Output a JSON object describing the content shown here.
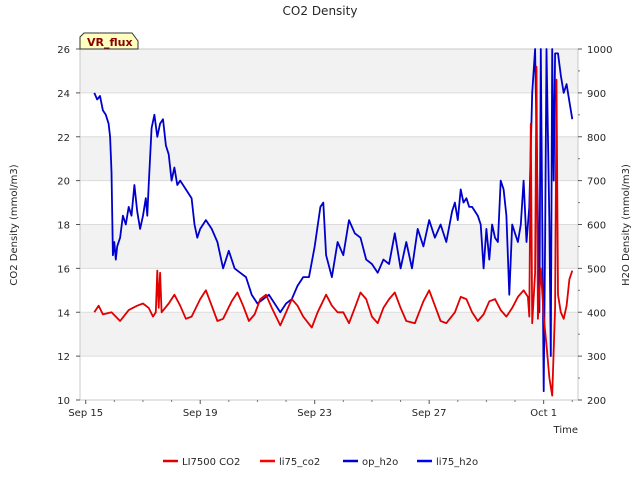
{
  "chart_data": {
    "type": "line",
    "title": "CO2 Density",
    "badge": "VR_flux",
    "xlabel": "Time",
    "ylabel_left": "CO2 Density (mmol/m3)",
    "ylabel_right": "H2O Density (mmol/m3)",
    "x_unit": "days since Sep 15",
    "xlim": [
      -0.2,
      17.2
    ],
    "ylim_left": [
      10,
      26
    ],
    "ylim_right": [
      200,
      1000
    ],
    "x_ticks": [
      {
        "value": 0,
        "label": "Sep 15"
      },
      {
        "value": 4,
        "label": "Sep 19"
      },
      {
        "value": 8,
        "label": "Sep 23"
      },
      {
        "value": 12,
        "label": "Sep 27"
      },
      {
        "value": 16,
        "label": "Oct 1"
      }
    ],
    "y_ticks_left": [
      10,
      12,
      14,
      16,
      18,
      20,
      22,
      24,
      26
    ],
    "y_ticks_right": [
      200,
      300,
      400,
      500,
      600,
      700,
      800,
      900,
      1000
    ],
    "bands": "alternating light gray horizontal bands",
    "legend": [
      {
        "name": "LI7500 CO2",
        "color": "#e00000"
      },
      {
        "name": "li75_co2",
        "color": "#ff0000"
      },
      {
        "name": "op_h2o",
        "color": "#0000cc"
      },
      {
        "name": "li75_h2o",
        "color": "#0000ff"
      }
    ],
    "series": [
      {
        "name": "LI7500 CO2",
        "axis": "left",
        "color": "#e00000",
        "points": [
          [
            0.3,
            14.0
          ],
          [
            0.45,
            14.3
          ],
          [
            0.6,
            13.9
          ],
          [
            0.9,
            14.0
          ],
          [
            1.2,
            13.6
          ],
          [
            1.5,
            14.1
          ],
          [
            1.8,
            14.3
          ],
          [
            2.0,
            14.4
          ],
          [
            2.2,
            14.2
          ],
          [
            2.35,
            13.8
          ],
          [
            2.45,
            14.0
          ],
          [
            2.5,
            15.9
          ],
          [
            2.55,
            14.2
          ],
          [
            2.6,
            15.8
          ],
          [
            2.65,
            14.0
          ],
          [
            2.9,
            14.4
          ],
          [
            3.1,
            14.8
          ],
          [
            3.3,
            14.3
          ],
          [
            3.5,
            13.7
          ],
          [
            3.7,
            13.8
          ],
          [
            4.0,
            14.6
          ],
          [
            4.2,
            15.0
          ],
          [
            4.4,
            14.3
          ],
          [
            4.6,
            13.6
          ],
          [
            4.8,
            13.7
          ],
          [
            5.1,
            14.5
          ],
          [
            5.3,
            14.9
          ],
          [
            5.5,
            14.3
          ],
          [
            5.7,
            13.6
          ],
          [
            5.9,
            13.9
          ],
          [
            6.1,
            14.6
          ],
          [
            6.3,
            14.8
          ],
          [
            6.5,
            14.2
          ],
          [
            6.8,
            13.4
          ],
          [
            7.0,
            14.0
          ],
          [
            7.2,
            14.6
          ],
          [
            7.4,
            14.3
          ],
          [
            7.6,
            13.8
          ],
          [
            7.9,
            13.3
          ],
          [
            8.1,
            14.0
          ],
          [
            8.4,
            14.8
          ],
          [
            8.6,
            14.3
          ],
          [
            8.8,
            14.0
          ],
          [
            9.0,
            14.0
          ],
          [
            9.2,
            13.5
          ],
          [
            9.4,
            14.2
          ],
          [
            9.6,
            14.9
          ],
          [
            9.8,
            14.6
          ],
          [
            10.0,
            13.8
          ],
          [
            10.2,
            13.5
          ],
          [
            10.4,
            14.2
          ],
          [
            10.6,
            14.6
          ],
          [
            10.8,
            14.9
          ],
          [
            11.0,
            14.2
          ],
          [
            11.2,
            13.6
          ],
          [
            11.5,
            13.5
          ],
          [
            11.8,
            14.5
          ],
          [
            12.0,
            15.0
          ],
          [
            12.2,
            14.3
          ],
          [
            12.4,
            13.6
          ],
          [
            12.6,
            13.5
          ],
          [
            12.9,
            14.0
          ],
          [
            13.1,
            14.7
          ],
          [
            13.3,
            14.6
          ],
          [
            13.5,
            14.0
          ],
          [
            13.7,
            13.6
          ],
          [
            13.9,
            13.9
          ],
          [
            14.1,
            14.5
          ],
          [
            14.3,
            14.6
          ],
          [
            14.5,
            14.1
          ],
          [
            14.7,
            13.8
          ],
          [
            14.9,
            14.2
          ],
          [
            15.1,
            14.7
          ],
          [
            15.3,
            15.0
          ],
          [
            15.45,
            14.7
          ],
          [
            15.5,
            13.8
          ],
          [
            15.55,
            22.6
          ],
          [
            15.6,
            13.5
          ],
          [
            15.7,
            15.8
          ],
          [
            15.75,
            25.2
          ],
          [
            15.8,
            13.7
          ],
          [
            15.9,
            16.0
          ],
          [
            16.0,
            13.8
          ],
          [
            16.1,
            12.5
          ],
          [
            16.2,
            11.0
          ],
          [
            16.3,
            10.2
          ],
          [
            16.4,
            14.2
          ],
          [
            16.45,
            24.6
          ],
          [
            16.5,
            14.8
          ],
          [
            16.6,
            14.0
          ],
          [
            16.7,
            13.7
          ],
          [
            16.8,
            14.3
          ],
          [
            16.9,
            15.5
          ],
          [
            17.0,
            15.9
          ]
        ]
      },
      {
        "name": "op_h2o",
        "axis": "right",
        "color": "#0000cc",
        "points": [
          [
            0.3,
            900
          ],
          [
            0.4,
            885
          ],
          [
            0.5,
            893
          ],
          [
            0.6,
            860
          ],
          [
            0.7,
            850
          ],
          [
            0.8,
            830
          ],
          [
            0.85,
            800
          ],
          [
            0.9,
            720
          ],
          [
            0.95,
            530
          ],
          [
            1.0,
            560
          ],
          [
            1.05,
            520
          ],
          [
            1.1,
            550
          ],
          [
            1.2,
            570
          ],
          [
            1.3,
            620
          ],
          [
            1.4,
            600
          ],
          [
            1.5,
            640
          ],
          [
            1.6,
            620
          ],
          [
            1.7,
            690
          ],
          [
            1.8,
            630
          ],
          [
            1.9,
            590
          ],
          [
            2.0,
            620
          ],
          [
            2.1,
            660
          ],
          [
            2.15,
            620
          ],
          [
            2.2,
            690
          ],
          [
            2.3,
            820
          ],
          [
            2.4,
            850
          ],
          [
            2.5,
            800
          ],
          [
            2.6,
            830
          ],
          [
            2.7,
            840
          ],
          [
            2.8,
            780
          ],
          [
            2.9,
            760
          ],
          [
            3.0,
            700
          ],
          [
            3.1,
            730
          ],
          [
            3.2,
            690
          ],
          [
            3.3,
            700
          ],
          [
            3.5,
            680
          ],
          [
            3.7,
            660
          ],
          [
            3.8,
            600
          ],
          [
            3.9,
            570
          ],
          [
            4.0,
            590
          ],
          [
            4.2,
            610
          ],
          [
            4.4,
            590
          ],
          [
            4.6,
            560
          ],
          [
            4.8,
            500
          ],
          [
            5.0,
            540
          ],
          [
            5.2,
            500
          ],
          [
            5.4,
            490
          ],
          [
            5.6,
            480
          ],
          [
            5.8,
            440
          ],
          [
            6.0,
            420
          ],
          [
            6.2,
            430
          ],
          [
            6.4,
            440
          ],
          [
            6.6,
            420
          ],
          [
            6.8,
            400
          ],
          [
            7.0,
            420
          ],
          [
            7.2,
            430
          ],
          [
            7.4,
            460
          ],
          [
            7.6,
            480
          ],
          [
            7.8,
            480
          ],
          [
            8.0,
            550
          ],
          [
            8.2,
            640
          ],
          [
            8.3,
            650
          ],
          [
            8.4,
            530
          ],
          [
            8.6,
            480
          ],
          [
            8.8,
            560
          ],
          [
            9.0,
            530
          ],
          [
            9.2,
            610
          ],
          [
            9.4,
            580
          ],
          [
            9.6,
            570
          ],
          [
            9.8,
            520
          ],
          [
            10.0,
            510
          ],
          [
            10.2,
            490
          ],
          [
            10.4,
            520
          ],
          [
            10.6,
            510
          ],
          [
            10.8,
            580
          ],
          [
            11.0,
            500
          ],
          [
            11.2,
            560
          ],
          [
            11.4,
            500
          ],
          [
            11.6,
            590
          ],
          [
            11.8,
            550
          ],
          [
            12.0,
            610
          ],
          [
            12.2,
            570
          ],
          [
            12.4,
            600
          ],
          [
            12.6,
            560
          ],
          [
            12.8,
            630
          ],
          [
            12.9,
            650
          ],
          [
            13.0,
            610
          ],
          [
            13.1,
            680
          ],
          [
            13.2,
            650
          ],
          [
            13.3,
            660
          ],
          [
            13.4,
            640
          ],
          [
            13.5,
            640
          ],
          [
            13.7,
            620
          ],
          [
            13.8,
            600
          ],
          [
            13.9,
            500
          ],
          [
            14.0,
            590
          ],
          [
            14.1,
            520
          ],
          [
            14.2,
            600
          ],
          [
            14.3,
            570
          ],
          [
            14.4,
            560
          ],
          [
            14.5,
            700
          ],
          [
            14.6,
            680
          ],
          [
            14.7,
            620
          ],
          [
            14.8,
            440
          ],
          [
            14.9,
            600
          ],
          [
            15.0,
            580
          ],
          [
            15.1,
            560
          ],
          [
            15.2,
            600
          ],
          [
            15.3,
            700
          ],
          [
            15.4,
            560
          ],
          [
            15.5,
            640
          ],
          [
            15.6,
            900
          ],
          [
            15.7,
            1000
          ],
          [
            15.8,
            620
          ],
          [
            15.85,
            400
          ],
          [
            15.9,
            1000
          ],
          [
            16.0,
            220
          ],
          [
            16.05,
            560
          ],
          [
            16.1,
            1000
          ],
          [
            16.2,
            600
          ],
          [
            16.25,
            300
          ],
          [
            16.3,
            1000
          ],
          [
            16.35,
            700
          ],
          [
            16.4,
            990
          ],
          [
            16.5,
            990
          ],
          [
            16.6,
            940
          ],
          [
            16.7,
            900
          ],
          [
            16.8,
            920
          ],
          [
            16.9,
            880
          ],
          [
            17.0,
            840
          ]
        ]
      }
    ]
  }
}
